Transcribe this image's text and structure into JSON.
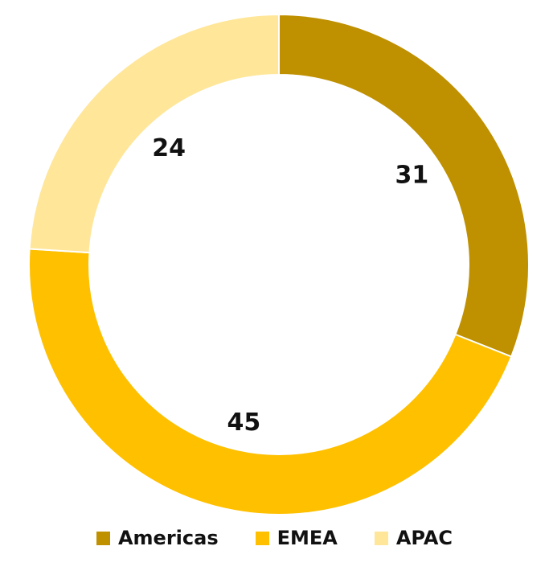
{
  "chart_data": {
    "type": "pie",
    "donut": true,
    "title": "",
    "categories": [
      "Americas",
      "EMEA",
      "APAC"
    ],
    "values": [
      31,
      45,
      24
    ],
    "colors": [
      "#BF9000",
      "#FFC000",
      "#FFE699"
    ],
    "legend_position": "bottom",
    "start_angle": "top",
    "direction": "clockwise"
  }
}
